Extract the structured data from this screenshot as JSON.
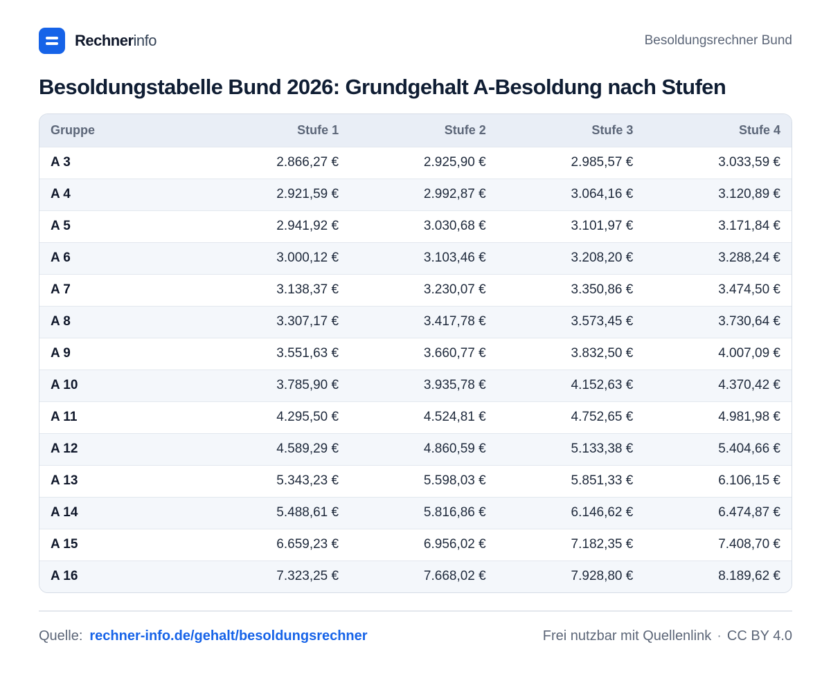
{
  "brand": {
    "name_bold": "Rechner",
    "name_light": "info",
    "logo_icon": "equals-icon",
    "accent_color": "#1663e8"
  },
  "header": {
    "right_label": "Besoldungsrechner Bund"
  },
  "title": "Besoldungstabelle Bund 2026: Grundgehalt A-Besoldung nach Stufen",
  "table": {
    "columns": [
      "Gruppe",
      "Stufe 1",
      "Stufe 2",
      "Stufe 3",
      "Stufe 4"
    ],
    "rows": [
      [
        "A 3",
        "2.866,27 €",
        "2.925,90 €",
        "2.985,57 €",
        "3.033,59 €"
      ],
      [
        "A 4",
        "2.921,59 €",
        "2.992,87 €",
        "3.064,16 €",
        "3.120,89 €"
      ],
      [
        "A 5",
        "2.941,92 €",
        "3.030,68 €",
        "3.101,97 €",
        "3.171,84 €"
      ],
      [
        "A 6",
        "3.000,12 €",
        "3.103,46 €",
        "3.208,20 €",
        "3.288,24 €"
      ],
      [
        "A 7",
        "3.138,37 €",
        "3.230,07 €",
        "3.350,86 €",
        "3.474,50 €"
      ],
      [
        "A 8",
        "3.307,17 €",
        "3.417,78 €",
        "3.573,45 €",
        "3.730,64 €"
      ],
      [
        "A 9",
        "3.551,63 €",
        "3.660,77 €",
        "3.832,50 €",
        "4.007,09 €"
      ],
      [
        "A 10",
        "3.785,90 €",
        "3.935,78 €",
        "4.152,63 €",
        "4.370,42 €"
      ],
      [
        "A 11",
        "4.295,50 €",
        "4.524,81 €",
        "4.752,65 €",
        "4.981,98 €"
      ],
      [
        "A 12",
        "4.589,29 €",
        "4.860,59 €",
        "5.133,38 €",
        "5.404,66 €"
      ],
      [
        "A 13",
        "5.343,23 €",
        "5.598,03 €",
        "5.851,33 €",
        "6.106,15 €"
      ],
      [
        "A 14",
        "5.488,61 €",
        "5.816,86 €",
        "6.146,62 €",
        "6.474,87 €"
      ],
      [
        "A 15",
        "6.659,23 €",
        "6.956,02 €",
        "7.182,35 €",
        "7.408,70 €"
      ],
      [
        "A 16",
        "7.323,25 €",
        "7.668,02 €",
        "7.928,80 €",
        "8.189,62 €"
      ]
    ]
  },
  "footer": {
    "source_label": "Quelle:",
    "source_link": "rechner-info.de/gehalt/besoldungsrechner",
    "usage_note": "Frei nutzbar mit Quellenlink",
    "separator": "·",
    "license": "CC BY 4.0"
  }
}
